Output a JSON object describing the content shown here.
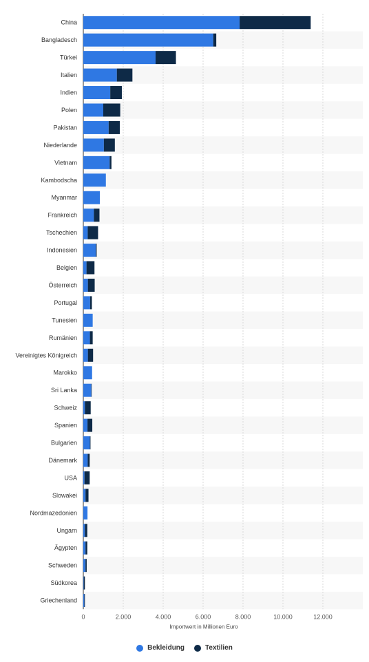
{
  "chart_data": {
    "type": "bar",
    "orientation": "horizontal",
    "stacked": true,
    "categories": [
      "China",
      "Bangladesch",
      "Türkei",
      "Italien",
      "Indien",
      "Polen",
      "Pakistan",
      "Niederlande",
      "Vietnam",
      "Kambodscha",
      "Myanmar",
      "Frankreich",
      "Tschechien",
      "Indonesien",
      "Belgien",
      "Österreich",
      "Portugal",
      "Tunesien",
      "Rumänien",
      "Vereinigtes Königreich",
      "Marokko",
      "Sri Lanka",
      "Schweiz",
      "Spanien",
      "Bulgarien",
      "Dänemark",
      "USA",
      "Slowakei",
      "Nordmazedonien",
      "Ungarn",
      "Ägypten",
      "Schweden",
      "Südkorea",
      "Griechenland"
    ],
    "series": [
      {
        "name": "Bekleidung",
        "color": "#2f78e3",
        "values": [
          7830,
          6510,
          3620,
          1680,
          1350,
          1000,
          1270,
          1030,
          1320,
          1130,
          830,
          530,
          220,
          630,
          160,
          230,
          340,
          470,
          330,
          230,
          440,
          400,
          80,
          210,
          330,
          220,
          60,
          110,
          210,
          80,
          110,
          110,
          20,
          50
        ]
      },
      {
        "name": "Textilien",
        "color": "#0e2a47",
        "values": [
          3560,
          150,
          1020,
          780,
          580,
          850,
          560,
          550,
          90,
          0,
          0,
          280,
          520,
          40,
          400,
          340,
          90,
          0,
          140,
          260,
          0,
          20,
          290,
          240,
          30,
          100,
          260,
          150,
          0,
          120,
          90,
          60,
          60,
          30
        ]
      }
    ],
    "xlabel": "Importwert in Millionen Euro",
    "xlim": [
      0,
      14000
    ],
    "xticks": [
      0,
      2000,
      4000,
      6000,
      8000,
      10000,
      12000
    ],
    "xtick_labels": [
      "0",
      "2.000",
      "4.000",
      "6.000",
      "8.000",
      "10.000",
      "12.000"
    ],
    "grid": true,
    "legend_position": "bottom"
  }
}
